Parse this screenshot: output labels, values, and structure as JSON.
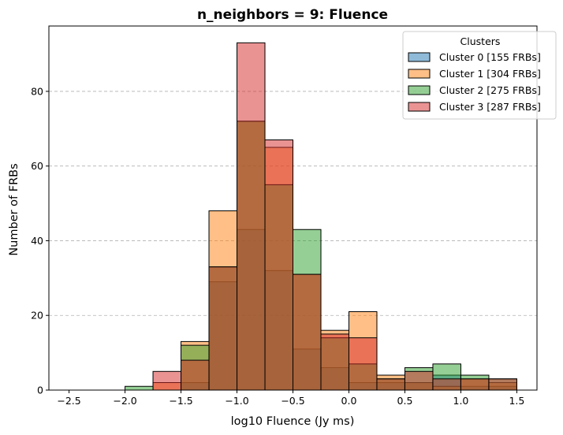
{
  "chart_data": {
    "type": "bar",
    "subtype": "overlaid-histogram",
    "title": "n_neighbors = 9: Fluence",
    "xlabel": "log10 Fluence (Jy ms)",
    "ylabel": "Number of FRBs",
    "xlim": [
      -2.68,
      1.68
    ],
    "ylim": [
      0,
      97.5
    ],
    "xticks": [
      -2.5,
      -2.0,
      -1.5,
      -1.0,
      -0.5,
      0.0,
      0.5,
      1.0,
      1.5
    ],
    "xtick_labels": [
      "−2.5",
      "−2.0",
      "−1.5",
      "−1.0",
      "−0.5",
      "0.0",
      "0.5",
      "1.0",
      "1.5"
    ],
    "yticks": [
      0,
      20,
      40,
      60,
      80
    ],
    "ytick_labels": [
      "0",
      "20",
      "40",
      "60",
      "80"
    ],
    "grid": "y-dashed",
    "legend_title": "Clusters",
    "legend_position": "top-right",
    "bin_edges": [
      -2.5,
      -2.25,
      -2.0,
      -1.75,
      -1.5,
      -1.25,
      -1.0,
      -0.75,
      -0.5,
      -0.25,
      0.0,
      0.25,
      0.5,
      0.75,
      1.0,
      1.25,
      1.5
    ],
    "series": [
      {
        "name": "Cluster 0 [155 FRBs]",
        "color": "#1f77b4",
        "values": [
          0,
          0,
          0,
          0,
          2,
          29,
          43,
          32,
          11,
          6,
          2,
          2,
          2,
          4,
          1,
          1
        ]
      },
      {
        "name": "Cluster 1 [304 FRBs]",
        "color": "#ff7f0e",
        "values": [
          0,
          0,
          0,
          2,
          13,
          48,
          72,
          65,
          31,
          16,
          21,
          4,
          2,
          1,
          3,
          2
        ]
      },
      {
        "name": "Cluster 2 [275 FRBs]",
        "color": "#2ca02c",
        "values": [
          0,
          0,
          1,
          0,
          12,
          33,
          72,
          55,
          43,
          14,
          7,
          3,
          6,
          7,
          4,
          3
        ]
      },
      {
        "name": "Cluster 3 [287 FRBs]",
        "color": "#d62728",
        "values": [
          0,
          0,
          0,
          5,
          8,
          33,
          93,
          67,
          31,
          15,
          14,
          3,
          5,
          3,
          3,
          3
        ]
      }
    ]
  }
}
